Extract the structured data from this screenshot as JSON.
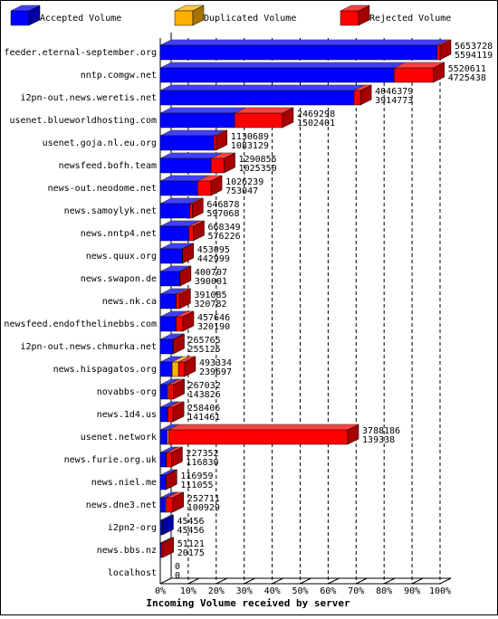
{
  "chart_data": {
    "type": "bar3d_stacked_horizontal",
    "title": "Incoming Volume received by server",
    "categories": [
      "feeder.eternal-september.org",
      "nntp.comgw.net",
      "i2pn-out.news.weretis.net",
      "usenet.blueworldhosting.com",
      "usenet.goja.nl.eu.org",
      "newsfeed.bofh.team",
      "news-out.neodome.net",
      "news.samoylyk.net",
      "news.nntp4.net",
      "news.quux.org",
      "news.swapon.de",
      "news.nk.ca",
      "newsfeed.endofthelinebbs.com",
      "i2pn-out.news.chmurka.net",
      "news.hispagatos.org",
      "novabbs-org",
      "news.1d4.us",
      "usenet.network",
      "news.furie.org.uk",
      "news.niel.me",
      "news.dne3.net",
      "i2pn2-org",
      "news.bbs.nz",
      "localhost"
    ],
    "series": [
      {
        "name": "Accepted Volume",
        "color": "#0000ff",
        "values": [
          5594119,
          4725438,
          3914773,
          1502401,
          1083129,
          1025350,
          753047,
          597068,
          576226,
          442999,
          390001,
          320782,
          320190,
          255125,
          239697,
          143826,
          141461,
          139338,
          116830,
          111055,
          100929,
          45456,
          20175,
          0
        ]
      },
      {
        "name": "Duplicated Volume",
        "color": "#ffb000",
        "values": [
          0,
          0,
          0,
          0,
          0,
          0,
          0,
          0,
          0,
          0,
          0,
          0,
          0,
          0,
          128000,
          20000,
          10000,
          30000,
          10000,
          0,
          20000,
          0,
          0,
          0
        ]
      },
      {
        "name": "Rejected Volume",
        "color": "#ff0000",
        "values": [
          59609,
          795173,
          131606,
          966897,
          47560,
          265505,
          273192,
          49810,
          92123,
          10096,
          10706,
          70303,
          137456,
          10640,
          125637,
          103206,
          106945,
          3618848,
          100522,
          5904,
          131782,
          0,
          30946,
          0
        ]
      }
    ],
    "totals": [
      5653728,
      5520611,
      4046379,
      2469298,
      1130689,
      1290855,
      1026239,
      646878,
      668349,
      453095,
      400707,
      391085,
      457646,
      265765,
      493334,
      267032,
      258406,
      3788186,
      227352,
      116959,
      252711,
      45456,
      51121,
      0
    ],
    "xlim": [
      0,
      5653728
    ],
    "xticks": [
      {
        "value": 0,
        "label": "0%"
      },
      {
        "value": 565372.8,
        "label": "10%"
      },
      {
        "value": 1130745.6,
        "label": "20%"
      },
      {
        "value": 1696118.4,
        "label": "30%"
      },
      {
        "value": 2261491.2,
        "label": "40%"
      },
      {
        "value": 2826864,
        "label": "50%"
      },
      {
        "value": 3392236.8,
        "label": "60%"
      },
      {
        "value": 3957609.6,
        "label": "70%"
      },
      {
        "value": 4522982.4,
        "label": "80%"
      },
      {
        "value": 5088355.2,
        "label": "90%"
      },
      {
        "value": 5653728,
        "label": "100%"
      }
    ],
    "grid": true
  }
}
